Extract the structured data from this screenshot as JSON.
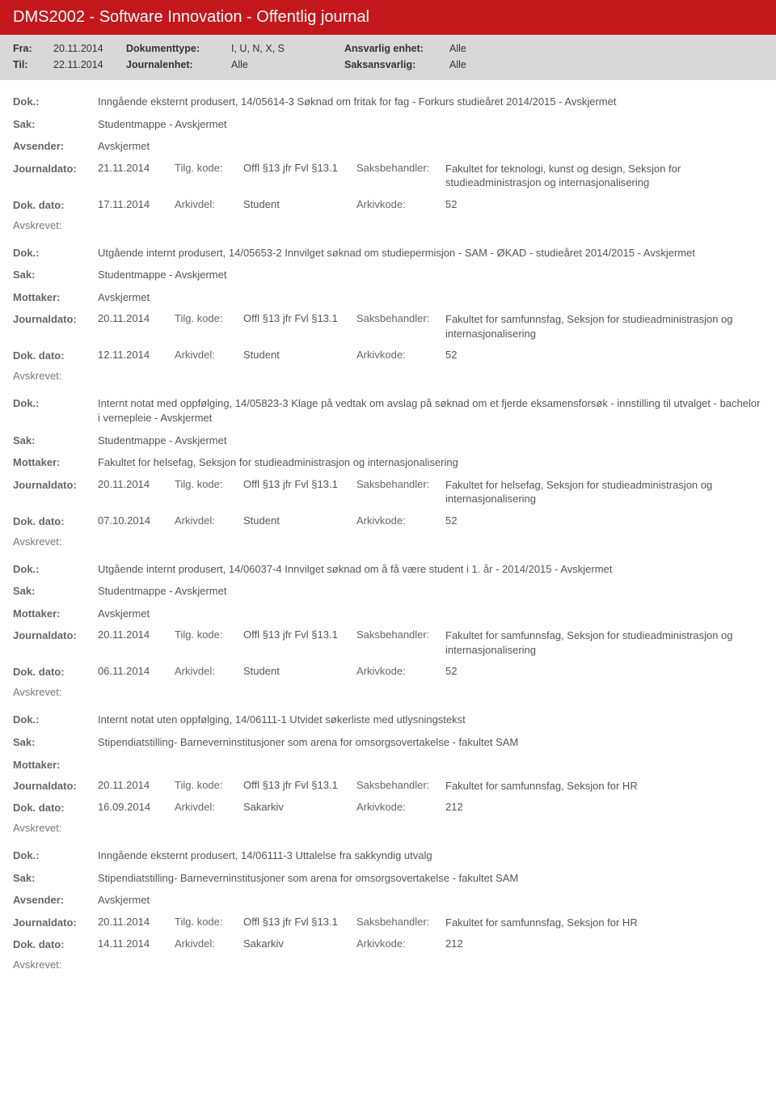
{
  "header": "DMS2002 - Software Innovation - Offentlig journal",
  "filter": {
    "fra_label": "Fra:",
    "fra": "20.11.2014",
    "til_label": "Til:",
    "til": "22.11.2014",
    "doktype_label": "Dokumenttype:",
    "doktype": "I, U, N, X, S",
    "journalenhet_label": "Journalenhet:",
    "journalenhet": "Alle",
    "ansvarlig_label": "Ansvarlig enhet:",
    "ansvarlig": "Alle",
    "saksansvarlig_label": "Saksansvarlig:",
    "saksansvarlig": "Alle"
  },
  "labels": {
    "dok": "Dok.:",
    "sak": "Sak:",
    "avsender": "Avsender:",
    "mottaker": "Mottaker:",
    "journaldato": "Journaldato:",
    "tilgkode": "Tilg. kode:",
    "saksbehandler": "Saksbehandler:",
    "dokdato": "Dok. dato:",
    "arkivdel": "Arkivdel:",
    "arkivkode": "Arkivkode:",
    "avskrevet": "Avskrevet:"
  },
  "entries": [
    {
      "dok": "Inngående eksternt produsert, 14/05614-3 Søknad om fritak for fag - Forkurs studieåret 2014/2015 - Avskjermet",
      "sak": "Studentmappe - Avskjermet",
      "party_label": "Avsender:",
      "party": "Avskjermet",
      "journaldato": "21.11.2014",
      "tilgkode": "Offl §13 jfr Fvl §13.1",
      "saksbehandler": "Fakultet for teknologi, kunst og design, Seksjon for studieadministrasjon og internasjonalisering",
      "dokdato": "17.11.2014",
      "arkivdel": "Student",
      "arkivkode": "52"
    },
    {
      "dok": "Utgående internt produsert, 14/05653-2 Innvilget søknad om studiepermisjon - SAM - ØKAD - studieåret 2014/2015 - Avskjermet",
      "sak": "Studentmappe - Avskjermet",
      "party_label": "Mottaker:",
      "party": "Avskjermet",
      "journaldato": "20.11.2014",
      "tilgkode": "Offl §13 jfr Fvl §13.1",
      "saksbehandler": "Fakultet for samfunnsfag, Seksjon for studieadministrasjon og internasjonalisering",
      "dokdato": "12.11.2014",
      "arkivdel": "Student",
      "arkivkode": "52"
    },
    {
      "dok": "Internt notat med oppfølging, 14/05823-3 Klage på vedtak om avslag på søknad om et fjerde eksamensforsøk - innstilling til utvalget - bachelor i vernepleie - Avskjermet",
      "sak": "Studentmappe - Avskjermet",
      "party_label": "Mottaker:",
      "party": "Fakultet for helsefag, Seksjon for studieadministrasjon og internasjonalisering",
      "journaldato": "20.11.2014",
      "tilgkode": "Offl §13 jfr Fvl §13.1",
      "saksbehandler": "Fakultet for helsefag, Seksjon for studieadministrasjon og internasjonalisering",
      "dokdato": "07.10.2014",
      "arkivdel": "Student",
      "arkivkode": "52"
    },
    {
      "dok": "Utgående internt produsert, 14/06037-4 Innvilget søknad om å få være student i 1. år - 2014/2015 - Avskjermet",
      "sak": "Studentmappe - Avskjermet",
      "party_label": "Mottaker:",
      "party": "Avskjermet",
      "journaldato": "20.11.2014",
      "tilgkode": "Offl §13 jfr Fvl §13.1",
      "saksbehandler": "Fakultet for samfunnsfag, Seksjon for studieadministrasjon og internasjonalisering",
      "dokdato": "06.11.2014",
      "arkivdel": "Student",
      "arkivkode": "52"
    },
    {
      "dok": "Internt notat uten oppfølging, 14/06111-1 Utvidet søkerliste med utlysningstekst",
      "sak": "Stipendiatstilling- Barneverninstitusjoner som arena for omsorgsovertakelse - fakultet SAM",
      "party_label": "Mottaker:",
      "party": "",
      "journaldato": "20.11.2014",
      "tilgkode": "Offl §13 jfr Fvl §13.1",
      "saksbehandler": "Fakultet for samfunnsfag, Seksjon for HR",
      "dokdato": "16.09.2014",
      "arkivdel": "Sakarkiv",
      "arkivkode": "212"
    },
    {
      "dok": "Inngående eksternt produsert, 14/06111-3 Uttalelse fra sakkyndig utvalg",
      "sak": "Stipendiatstilling- Barneverninstitusjoner som arena for omsorgsovertakelse - fakultet SAM",
      "party_label": "Avsender:",
      "party": "Avskjermet",
      "journaldato": "20.11.2014",
      "tilgkode": "Offl §13 jfr Fvl §13.1",
      "saksbehandler": "Fakultet for samfunnsfag, Seksjon for HR",
      "dokdato": "14.11.2014",
      "arkivdel": "Sakarkiv",
      "arkivkode": "212"
    }
  ]
}
